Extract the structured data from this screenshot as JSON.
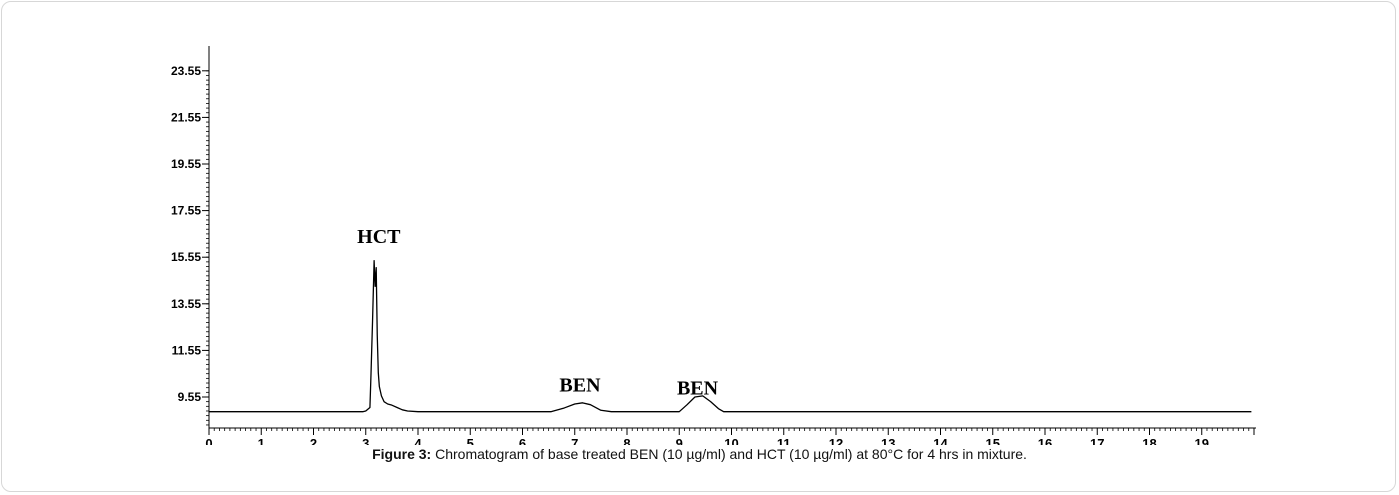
{
  "caption": {
    "label": "Figure 3:",
    "text": " Chromatogram of base treated BEN (10 µg/ml) and HCT (10 µg/ml) at 80°C for 4 hrs in mixture."
  },
  "chart_data": {
    "type": "line",
    "title": "",
    "xlabel": "",
    "ylabel": "",
    "xlim": [
      0,
      20
    ],
    "ylim": [
      8.2,
      23.55
    ],
    "x_ticks": [
      0,
      1,
      2,
      3,
      4,
      5,
      6,
      7,
      8,
      9,
      10,
      11,
      12,
      13,
      14,
      15,
      16,
      17,
      18,
      19
    ],
    "x_tick_labels": [
      "0",
      "1",
      "2",
      "3",
      "4",
      "5",
      "6",
      "7",
      "8",
      "9",
      "10",
      "11",
      "12",
      "13",
      "14",
      "15",
      "16",
      "17",
      "18",
      "19"
    ],
    "y_ticks": [
      9.55,
      11.55,
      13.55,
      15.55,
      17.55,
      19.55,
      21.55,
      23.55
    ],
    "y_tick_labels": [
      "9.55",
      "11.55",
      "13.55",
      "15.55",
      "17.55",
      "19.55",
      "21.55",
      "23.55"
    ],
    "series": [
      {
        "color": "#000000",
        "x": [
          0,
          2.95,
          3.0,
          3.08,
          3.1,
          3.13,
          3.16,
          3.18,
          3.2,
          3.22,
          3.24,
          3.26,
          3.3,
          3.35,
          3.42,
          3.5,
          3.6,
          3.7,
          3.8,
          4.0,
          6.55,
          6.8,
          7.0,
          7.15,
          7.3,
          7.5,
          7.7,
          9.0,
          9.15,
          9.3,
          9.45,
          9.6,
          9.75,
          9.85,
          19.95
        ],
        "y": [
          8.92,
          8.92,
          8.95,
          9.1,
          10.5,
          12.8,
          15.4,
          14.3,
          15.1,
          12.2,
          10.6,
          10.0,
          9.6,
          9.35,
          9.25,
          9.2,
          9.1,
          9.0,
          8.95,
          8.92,
          8.92,
          9.08,
          9.25,
          9.3,
          9.22,
          8.98,
          8.92,
          8.92,
          9.22,
          9.55,
          9.6,
          9.35,
          9.05,
          8.92,
          8.92
        ]
      }
    ],
    "annotations": [
      {
        "text": "HCT",
        "x": 3.25,
        "y": 16.15
      },
      {
        "text": "BEN",
        "x": 7.1,
        "y": 9.78
      },
      {
        "text": "BEN",
        "x": 9.35,
        "y": 9.66
      }
    ],
    "grid": false,
    "legend": "none"
  }
}
